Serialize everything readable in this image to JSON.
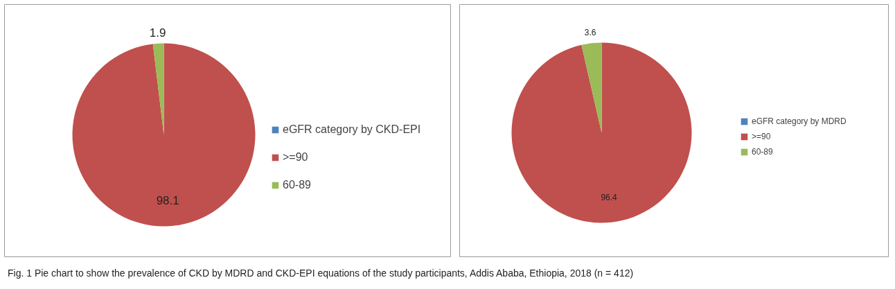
{
  "chart_data": [
    {
      "type": "pie",
      "categories": [
        "eGFR category by CKD-EPI",
        ">=90",
        "60-89"
      ],
      "values": [
        0,
        98.1,
        1.9
      ],
      "colors": [
        "#4f81bd",
        "#c0504d",
        "#9bbb59"
      ],
      "data_labels": true,
      "legend": "right"
    },
    {
      "type": "pie",
      "categories": [
        "eGFR category by MDRD",
        ">=90",
        "60-89"
      ],
      "values": [
        0,
        96.4,
        3.6
      ],
      "colors": [
        "#4f81bd",
        "#c0504d",
        "#9bbb59"
      ],
      "data_labels": true,
      "legend": "right",
      "annotations": [
        "Fig. 1 Pie chart to show the prevalence of CKD by MDRD and CKD-EPI equations of the study participants, Addis Ababa, Ethiopia, 2018 (n = 412)"
      ]
    }
  ]
}
